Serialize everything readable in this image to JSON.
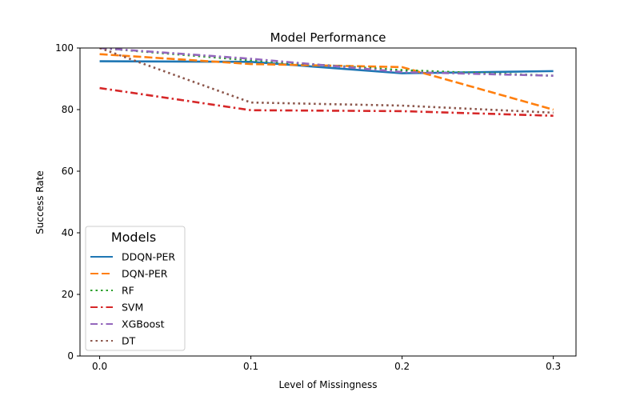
{
  "chart_data": {
    "type": "line",
    "title": "Model Performance",
    "xlabel": "Level of Missingness",
    "ylabel": "Success Rate",
    "x": [
      0.0,
      0.1,
      0.2,
      0.3
    ],
    "xticks": [
      "0.0",
      "0.1",
      "0.2",
      "0.3"
    ],
    "xlim": [
      -0.013,
      0.315
    ],
    "ylim": [
      0,
      100
    ],
    "yticks": [
      "0",
      "20",
      "40",
      "60",
      "80",
      "100"
    ],
    "grid": false,
    "legend": {
      "title": "Models",
      "placement": "lower-left"
    },
    "series": [
      {
        "name": "DDQN-PER",
        "values": [
          95.7,
          95.5,
          91.8,
          92.5
        ],
        "color": "#1f77b4",
        "dash": "solid"
      },
      {
        "name": "DQN-PER",
        "values": [
          98.0,
          94.8,
          93.8,
          80.0
        ],
        "color": "#ff7f0e",
        "dash": "dashed"
      },
      {
        "name": "RF",
        "values": [
          100.0,
          96.0,
          92.8,
          91.0
        ],
        "color": "#2ca02c",
        "dash": "dotted"
      },
      {
        "name": "SVM",
        "values": [
          87.0,
          79.8,
          79.5,
          78.0
        ],
        "color": "#d62728",
        "dash": "dashdot"
      },
      {
        "name": "XGBoost",
        "values": [
          100.0,
          96.5,
          92.2,
          91.0
        ],
        "color": "#9467bd",
        "dash": "dashdot"
      },
      {
        "name": "DT",
        "values": [
          100.0,
          82.3,
          81.3,
          79.0
        ],
        "color": "#8c564b",
        "dash": "dotted"
      }
    ]
  }
}
